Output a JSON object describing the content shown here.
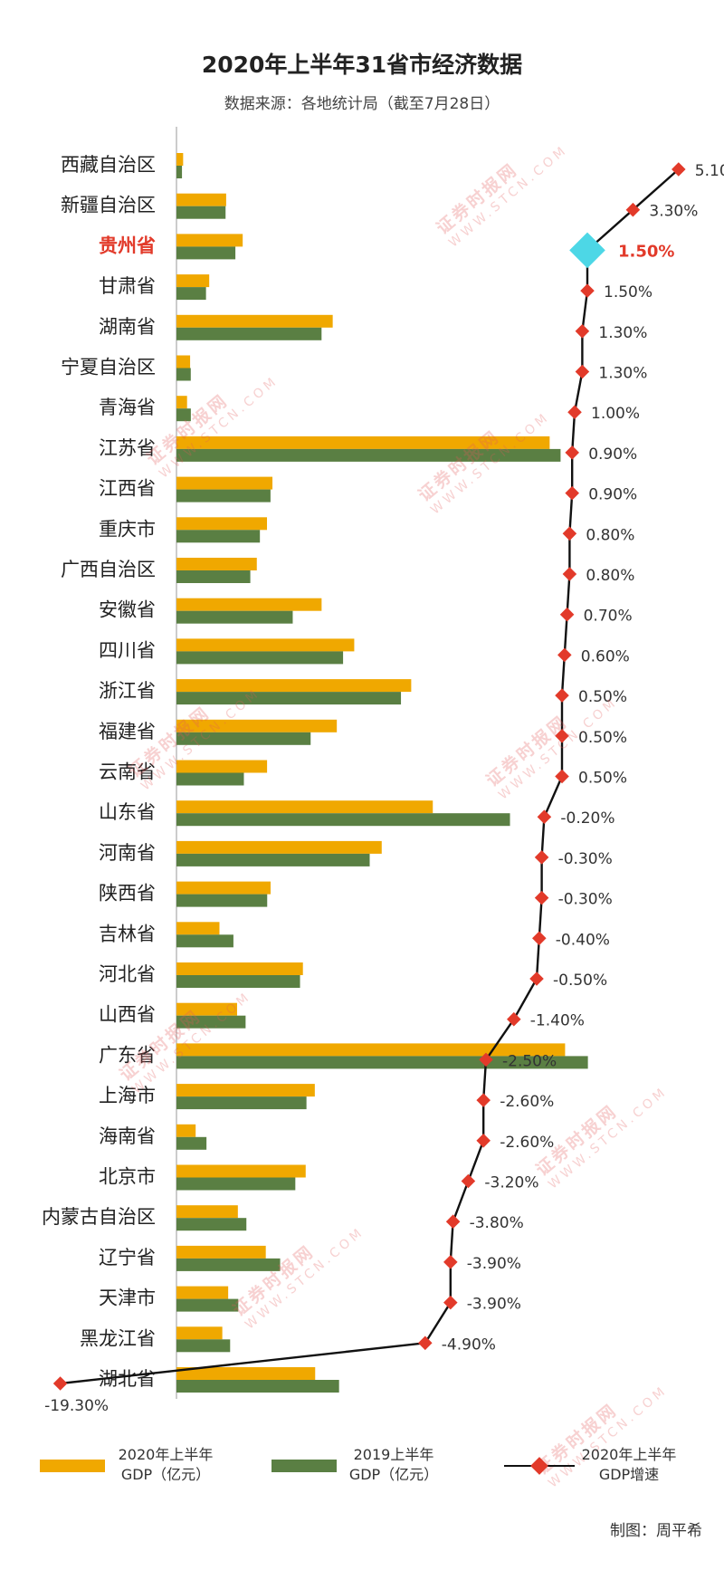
{
  "title": "2020年上半年31省市经济数据",
  "subtitle": "数据来源：各地统计局（截至7月28日）",
  "credit": "制图：周平希",
  "watermark": {
    "cn": "证券时报网",
    "en": "WWW.STCN.COM"
  },
  "legend": {
    "gdp_2020": [
      "2020年上半年",
      "GDP（亿元）"
    ],
    "gdp_2019": [
      "2019上半年",
      "GDP（亿元）"
    ],
    "growth": [
      "2020年上半年",
      "GDP增速"
    ]
  },
  "colors": {
    "gdp_2020": "#F0A800",
    "gdp_2019": "#5A7F43",
    "growth_marker": "#E23A2A",
    "highlight": "#E23A2A",
    "highlight_marker": "#4DD7E6",
    "line": "#111111"
  },
  "chart_data": {
    "type": "bar",
    "highlight_category": "贵州省",
    "categories": [
      "西藏自治区",
      "新疆自治区",
      "贵州省",
      "甘肃省",
      "湖南省",
      "宁夏自治区",
      "青海省",
      "江苏省",
      "江西省",
      "重庆市",
      "广西自治区",
      "安徽省",
      "四川省",
      "浙江省",
      "福建省",
      "云南省",
      "山东省",
      "河南省",
      "陕西省",
      "吉林省",
      "河北省",
      "山西省",
      "广东省",
      "上海市",
      "海南省",
      "北京市",
      "内蒙古自治区",
      "辽宁省",
      "天津市",
      "黑龙江省",
      "湖北省"
    ],
    "series": [
      {
        "name": "2020年上半年GDP（亿元）",
        "values": [
          848,
          6325,
          8430,
          4170,
          19891,
          1736,
          1348,
          47510,
          12218,
          11524,
          10227,
          18476,
          22631,
          29884,
          20413,
          11534,
          32634,
          26129,
          11982,
          5472,
          16097,
          7716,
          49475,
          17611,
          2441,
          16450,
          7815,
          11370,
          6583,
          5835,
          17658
        ]
      },
      {
        "name": "2019上半年GDP（亿元）",
        "values": [
          700,
          6250,
          7500,
          3760,
          18470,
          1820,
          1830,
          48900,
          11970,
          10620,
          9400,
          14800,
          21210,
          28580,
          17080,
          8580,
          42460,
          24600,
          11550,
          7250,
          15730,
          8800,
          52380,
          16550,
          3820,
          15130,
          8900,
          13200,
          7870,
          6830,
          20700
        ]
      },
      {
        "name": "2020年上半年GDP增速",
        "values": [
          5.1,
          3.3,
          1.5,
          1.5,
          1.3,
          1.3,
          1.0,
          0.9,
          0.9,
          0.8,
          0.8,
          0.7,
          0.6,
          0.5,
          0.5,
          0.5,
          -0.2,
          -0.3,
          -0.3,
          -0.4,
          -0.5,
          -1.4,
          -2.5,
          -2.6,
          -2.6,
          -3.2,
          -3.8,
          -3.9,
          -3.9,
          -4.9,
          -19.3
        ]
      }
    ],
    "growth_labels": [
      "5.10%",
      "3.30%",
      "1.50%",
      "1.50%",
      "1.30%",
      "1.30%",
      "1.00%",
      "0.90%",
      "0.90%",
      "0.80%",
      "0.80%",
      "0.70%",
      "0.60%",
      "0.50%",
      "0.50%",
      "0.50%",
      "-0.20%",
      "-0.30%",
      "-0.30%",
      "-0.40%",
      "-0.50%",
      "-1.40%",
      "-2.50%",
      "-2.60%",
      "-2.60%",
      "-3.20%",
      "-3.80%",
      "-3.90%",
      "-3.90%",
      "-4.90%",
      "-19.30%"
    ],
    "growth_label_positions": [
      "right",
      "right",
      "right",
      "right",
      "right",
      "right",
      "right",
      "right",
      "right",
      "right",
      "right",
      "right",
      "right",
      "right",
      "right",
      "right",
      "right",
      "right",
      "right",
      "right",
      "right",
      "right",
      "right",
      "right",
      "right",
      "right",
      "right",
      "right",
      "right",
      "right",
      "below"
    ]
  }
}
